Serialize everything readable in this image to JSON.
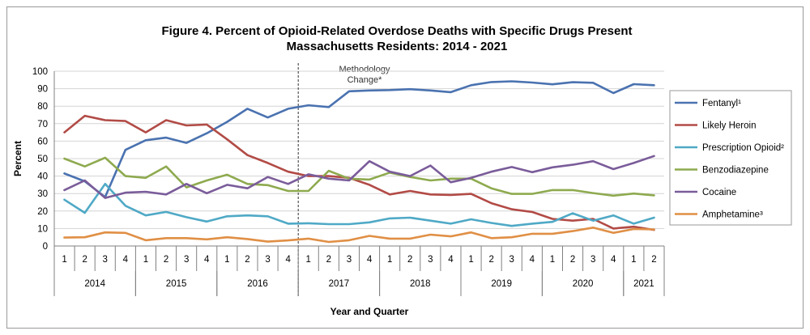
{
  "chart_data": {
    "type": "line",
    "title_line1": "Figure 4. Percent of Opioid-Related Overdose Deaths with Specific Drugs Present",
    "title_line2": "Massachusetts Residents: 2014 - 2021",
    "xlabel": "Year and Quarter",
    "ylabel": "Percent",
    "ylim": [
      0,
      100
    ],
    "yticks": [
      "0",
      "10",
      "20",
      "30",
      "40",
      "50",
      "60",
      "70",
      "80",
      "90",
      "100"
    ],
    "quarters": [
      "1",
      "2",
      "3",
      "4",
      "1",
      "2",
      "3",
      "4",
      "1",
      "2",
      "3",
      "4",
      "1",
      "2",
      "3",
      "4",
      "1",
      "2",
      "3",
      "4",
      "1",
      "2",
      "3",
      "4",
      "1",
      "2",
      "3",
      "4",
      "1",
      "2"
    ],
    "years": [
      {
        "label": "2014",
        "start": 0,
        "count": 4
      },
      {
        "label": "2015",
        "start": 4,
        "count": 4
      },
      {
        "label": "2016",
        "start": 8,
        "count": 4
      },
      {
        "label": "2017",
        "start": 12,
        "count": 4
      },
      {
        "label": "2018",
        "start": 16,
        "count": 4
      },
      {
        "label": "2019",
        "start": 20,
        "count": 4
      },
      {
        "label": "2020",
        "start": 24,
        "count": 4
      },
      {
        "label": "2021",
        "start": 28,
        "count": 2
      }
    ],
    "annotation": {
      "line1": "Methodology",
      "line2": "Change*",
      "after_index": 12
    },
    "grid": true,
    "legend_position": "right",
    "series": [
      {
        "name": "Fentanyl¹",
        "color": "#4a72b0",
        "values": [
          41.5,
          37,
          28,
          55,
          60.5,
          62,
          59,
          64.5,
          71,
          78.5,
          73.5,
          78.5,
          80.5,
          79.5,
          88.5,
          89,
          89.2,
          89.7,
          89,
          88,
          92,
          93.8,
          94.2,
          93.5,
          92.5,
          93.7,
          93.4,
          87.5,
          92.6,
          92
        ]
      },
      {
        "name": "Likely Heroin",
        "color": "#b24b46",
        "values": [
          65,
          74.5,
          72,
          71.5,
          65,
          72,
          69,
          69.5,
          61,
          52,
          47.5,
          42.5,
          40,
          40,
          39,
          35,
          29.5,
          31.5,
          29.5,
          29.2,
          29.8,
          24.5,
          21,
          19.5,
          15.5,
          14.5,
          15.5,
          10,
          11,
          9.2
        ]
      },
      {
        "name": "Prescription Opioid²",
        "color": "#4fa9c6",
        "values": [
          26.5,
          19,
          35.5,
          23,
          17.5,
          19.5,
          16.5,
          14,
          17,
          17.5,
          17,
          12.8,
          13,
          12.5,
          12.5,
          13.5,
          15.8,
          16.2,
          14.5,
          12.8,
          15.3,
          13.2,
          11.5,
          12.8,
          13.8,
          18.7,
          14.5,
          17.5,
          12.8,
          16.2
        ]
      },
      {
        "name": "Benzodiazepine",
        "color": "#8eaa4f",
        "values": [
          50,
          45.5,
          50.5,
          40,
          39,
          45.5,
          33.5,
          37.5,
          40.8,
          35.5,
          34.8,
          31.5,
          31.5,
          43,
          38.5,
          38,
          42,
          39.5,
          37.5,
          38.5,
          38.5,
          33,
          29.8,
          29.8,
          32,
          32,
          30.3,
          28.8,
          30,
          29
        ]
      },
      {
        "name": "Cocaine",
        "color": "#7a5c9a",
        "values": [
          32,
          37.5,
          27.5,
          30.5,
          31,
          29.5,
          35.5,
          30.2,
          35,
          33,
          39.5,
          35.5,
          41,
          38.5,
          37.5,
          48.5,
          42.5,
          40,
          46,
          36.5,
          39,
          42.5,
          45.2,
          42.2,
          45,
          46.5,
          48.5,
          44,
          47.5,
          51.5
        ]
      },
      {
        "name": "Amphetamine³",
        "color": "#e08f45",
        "values": [
          4.8,
          5,
          7.8,
          7.5,
          3.3,
          4.5,
          4.5,
          3.8,
          5,
          4,
          2.5,
          3.2,
          4.2,
          2.3,
          3.3,
          5.8,
          4.2,
          4.2,
          6.5,
          5.5,
          7.8,
          4.5,
          5,
          7,
          7,
          8.5,
          10.5,
          7.5,
          9.7,
          9.5
        ]
      }
    ]
  }
}
